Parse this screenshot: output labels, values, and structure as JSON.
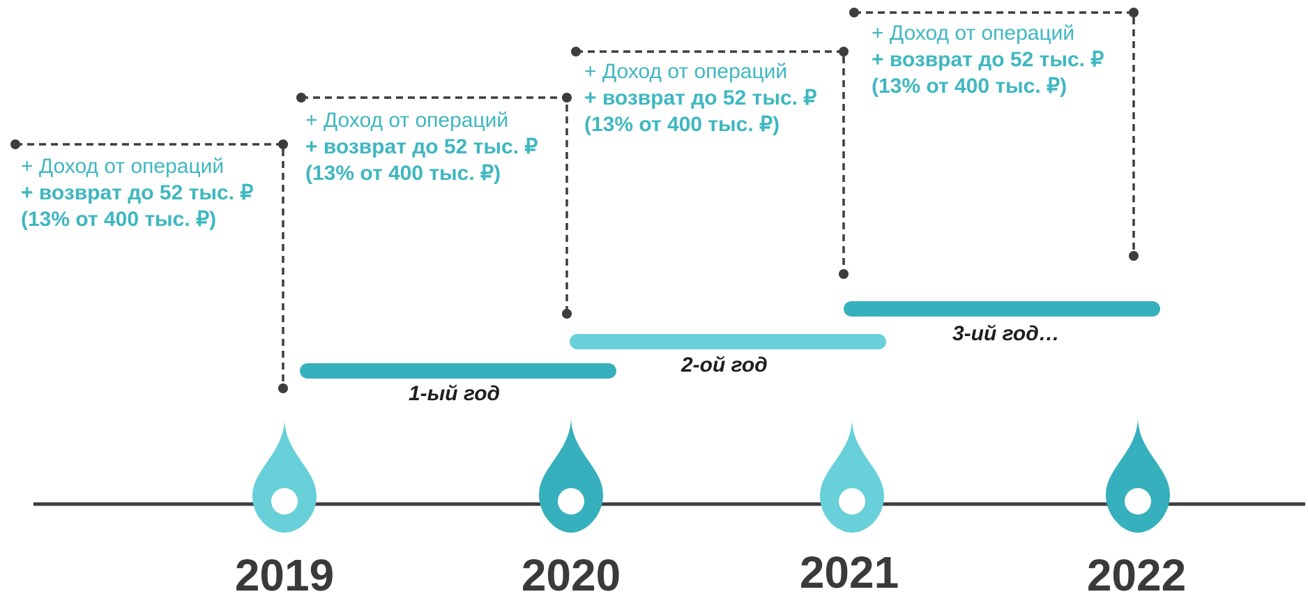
{
  "colors": {
    "teal_dark": "#36b0bc",
    "teal_light": "#68d0d9",
    "text_teal": "#3fb7c0",
    "line_dark": "#3d3d3d",
    "label_dark": "#1f1f1f"
  },
  "years": [
    {
      "label": "2019",
      "marker_color": "light"
    },
    {
      "label": "2020",
      "marker_color": "dark"
    },
    {
      "label": "2021",
      "marker_color": "light"
    },
    {
      "label": "2022",
      "marker_color": "dark"
    }
  ],
  "periods": [
    {
      "label": "1-ый год",
      "bar_color": "dark"
    },
    {
      "label": "2-ой год",
      "bar_color": "light"
    },
    {
      "label": "3-ий год…",
      "bar_color": "dark"
    }
  ],
  "notes": [
    {
      "line1": "+ Доход от операций",
      "line2": "+ возврат до 52 тыс. ₽",
      "line3": "(13% от 400 тыс. ₽)"
    },
    {
      "line1": "+ Доход от операций",
      "line2": "+ возврат до 52 тыс. ₽",
      "line3": "(13% от 400 тыс. ₽)"
    },
    {
      "line1": "+ Доход от операций",
      "line2": "+ возврат до 52 тыс. ₽",
      "line3": "(13% от 400 тыс. ₽)"
    },
    {
      "line1": "+ Доход от операций",
      "line2": "+ возврат до 52 тыс. ₽",
      "line3": "(13% от 400 тыс. ₽)"
    }
  ]
}
